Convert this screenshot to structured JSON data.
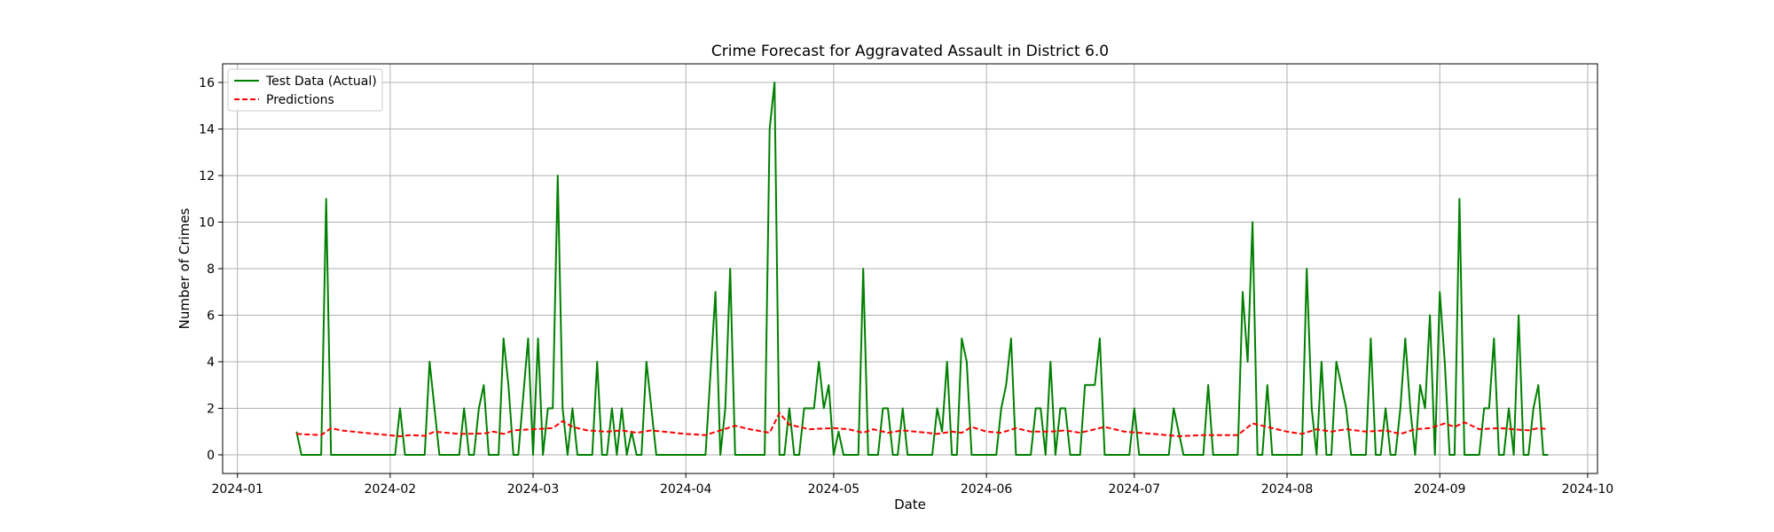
{
  "chart_data": {
    "type": "line",
    "title": "Crime Forecast for Aggravated Assault in District 6.0",
    "xlabel": "Date",
    "ylabel": "Number of Crimes",
    "x_tick_labels": [
      "2024-01",
      "2024-02",
      "2024-03",
      "2024-04",
      "2024-05",
      "2024-06",
      "2024-07",
      "2024-08",
      "2024-09",
      "2024-10"
    ],
    "x_tick_dates": [
      "2024-01-01",
      "2024-02-01",
      "2024-03-01",
      "2024-04-01",
      "2024-05-01",
      "2024-06-01",
      "2024-07-01",
      "2024-08-01",
      "2024-09-01",
      "2024-10-01"
    ],
    "xlim": [
      "2023-12-29",
      "2024-10-03"
    ],
    "ylim": [
      -0.8,
      16.8
    ],
    "y_ticks": [
      0,
      2,
      4,
      6,
      8,
      10,
      12,
      14,
      16
    ],
    "grid": true,
    "legend_position": "top-left",
    "series": [
      {
        "name": "Test Data (Actual)",
        "color": "#008000",
        "style": "solid",
        "points": [
          [
            "2024-01-13",
            1
          ],
          [
            "2024-01-14",
            0
          ],
          [
            "2024-01-18",
            0
          ],
          [
            "2024-01-19",
            11
          ],
          [
            "2024-01-20",
            0
          ],
          [
            "2024-01-25",
            0
          ],
          [
            "2024-02-02",
            0
          ],
          [
            "2024-02-03",
            2
          ],
          [
            "2024-02-04",
            0
          ],
          [
            "2024-02-08",
            0
          ],
          [
            "2024-02-09",
            4
          ],
          [
            "2024-02-11",
            0
          ],
          [
            "2024-02-15",
            0
          ],
          [
            "2024-02-16",
            2
          ],
          [
            "2024-02-17",
            0
          ],
          [
            "2024-02-18",
            0
          ],
          [
            "2024-02-19",
            2
          ],
          [
            "2024-02-20",
            3
          ],
          [
            "2024-02-21",
            0
          ],
          [
            "2024-02-23",
            0
          ],
          [
            "2024-02-24",
            5
          ],
          [
            "2024-02-25",
            3
          ],
          [
            "2024-02-26",
            0
          ],
          [
            "2024-02-27",
            0
          ],
          [
            "2024-02-29",
            5
          ],
          [
            "2024-03-01",
            0
          ],
          [
            "2024-03-02",
            5
          ],
          [
            "2024-03-03",
            0
          ],
          [
            "2024-03-04",
            2
          ],
          [
            "2024-03-05",
            2
          ],
          [
            "2024-03-06",
            12
          ],
          [
            "2024-03-07",
            2
          ],
          [
            "2024-03-08",
            0
          ],
          [
            "2024-03-09",
            2
          ],
          [
            "2024-03-10",
            0
          ],
          [
            "2024-03-13",
            0
          ],
          [
            "2024-03-14",
            4
          ],
          [
            "2024-03-15",
            0
          ],
          [
            "2024-03-16",
            0
          ],
          [
            "2024-03-17",
            2
          ],
          [
            "2024-03-18",
            0
          ],
          [
            "2024-03-19",
            2
          ],
          [
            "2024-03-20",
            0
          ],
          [
            "2024-03-21",
            1
          ],
          [
            "2024-03-22",
            0
          ],
          [
            "2024-03-23",
            0
          ],
          [
            "2024-03-24",
            4
          ],
          [
            "2024-03-26",
            0
          ],
          [
            "2024-04-05",
            0
          ],
          [
            "2024-04-07",
            7
          ],
          [
            "2024-04-08",
            0
          ],
          [
            "2024-04-09",
            2
          ],
          [
            "2024-04-10",
            8
          ],
          [
            "2024-04-11",
            0
          ],
          [
            "2024-04-17",
            0
          ],
          [
            "2024-04-18",
            14
          ],
          [
            "2024-04-19",
            16
          ],
          [
            "2024-04-20",
            0
          ],
          [
            "2024-04-21",
            0
          ],
          [
            "2024-04-22",
            2
          ],
          [
            "2024-04-23",
            0
          ],
          [
            "2024-04-24",
            0
          ],
          [
            "2024-04-25",
            2
          ],
          [
            "2024-04-27",
            2
          ],
          [
            "2024-04-28",
            4
          ],
          [
            "2024-04-29",
            2
          ],
          [
            "2024-04-30",
            3
          ],
          [
            "2024-05-01",
            0
          ],
          [
            "2024-05-02",
            1
          ],
          [
            "2024-05-03",
            0
          ],
          [
            "2024-05-06",
            0
          ],
          [
            "2024-05-07",
            8
          ],
          [
            "2024-05-08",
            0
          ],
          [
            "2024-05-10",
            0
          ],
          [
            "2024-05-11",
            2
          ],
          [
            "2024-05-12",
            2
          ],
          [
            "2024-05-13",
            0
          ],
          [
            "2024-05-14",
            0
          ],
          [
            "2024-05-15",
            2
          ],
          [
            "2024-05-16",
            0
          ],
          [
            "2024-05-21",
            0
          ],
          [
            "2024-05-22",
            2
          ],
          [
            "2024-05-23",
            1
          ],
          [
            "2024-05-24",
            4
          ],
          [
            "2024-05-25",
            0
          ],
          [
            "2024-05-26",
            0
          ],
          [
            "2024-05-27",
            5
          ],
          [
            "2024-05-28",
            4
          ],
          [
            "2024-05-29",
            0
          ],
          [
            "2024-06-03",
            0
          ],
          [
            "2024-06-04",
            2
          ],
          [
            "2024-06-05",
            3
          ],
          [
            "2024-06-06",
            5
          ],
          [
            "2024-06-07",
            0
          ],
          [
            "2024-06-10",
            0
          ],
          [
            "2024-06-11",
            2
          ],
          [
            "2024-06-12",
            2
          ],
          [
            "2024-06-13",
            0
          ],
          [
            "2024-06-14",
            4
          ],
          [
            "2024-06-15",
            0
          ],
          [
            "2024-06-16",
            2
          ],
          [
            "2024-06-17",
            2
          ],
          [
            "2024-06-18",
            0
          ],
          [
            "2024-06-20",
            0
          ],
          [
            "2024-06-21",
            3
          ],
          [
            "2024-06-23",
            3
          ],
          [
            "2024-06-24",
            5
          ],
          [
            "2024-06-25",
            0
          ],
          [
            "2024-06-30",
            0
          ],
          [
            "2024-07-01",
            2
          ],
          [
            "2024-07-02",
            0
          ],
          [
            "2024-07-08",
            0
          ],
          [
            "2024-07-09",
            2
          ],
          [
            "2024-07-11",
            0
          ],
          [
            "2024-07-15",
            0
          ],
          [
            "2024-07-16",
            3
          ],
          [
            "2024-07-17",
            0
          ],
          [
            "2024-07-22",
            0
          ],
          [
            "2024-07-23",
            7
          ],
          [
            "2024-07-24",
            4
          ],
          [
            "2024-07-25",
            10
          ],
          [
            "2024-07-26",
            0
          ],
          [
            "2024-07-27",
            0
          ],
          [
            "2024-07-28",
            3
          ],
          [
            "2024-07-29",
            0
          ],
          [
            "2024-08-04",
            0
          ],
          [
            "2024-08-05",
            8
          ],
          [
            "2024-08-06",
            2
          ],
          [
            "2024-08-07",
            0
          ],
          [
            "2024-08-08",
            4
          ],
          [
            "2024-08-09",
            0
          ],
          [
            "2024-08-10",
            0
          ],
          [
            "2024-08-11",
            4
          ],
          [
            "2024-08-13",
            2
          ],
          [
            "2024-08-14",
            0
          ],
          [
            "2024-08-17",
            0
          ],
          [
            "2024-08-18",
            5
          ],
          [
            "2024-08-19",
            0
          ],
          [
            "2024-08-20",
            0
          ],
          [
            "2024-08-21",
            2
          ],
          [
            "2024-08-22",
            0
          ],
          [
            "2024-08-23",
            0
          ],
          [
            "2024-08-24",
            2
          ],
          [
            "2024-08-25",
            5
          ],
          [
            "2024-08-26",
            2
          ],
          [
            "2024-08-27",
            0
          ],
          [
            "2024-08-28",
            3
          ],
          [
            "2024-08-29",
            2
          ],
          [
            "2024-08-30",
            6
          ],
          [
            "2024-08-31",
            0
          ],
          [
            "2024-09-01",
            7
          ],
          [
            "2024-09-02",
            4
          ],
          [
            "2024-09-03",
            0
          ],
          [
            "2024-09-04",
            0
          ],
          [
            "2024-09-05",
            11
          ],
          [
            "2024-09-06",
            0
          ],
          [
            "2024-09-09",
            0
          ],
          [
            "2024-09-10",
            2
          ],
          [
            "2024-09-11",
            2
          ],
          [
            "2024-09-12",
            5
          ],
          [
            "2024-09-13",
            0
          ],
          [
            "2024-09-14",
            0
          ],
          [
            "2024-09-15",
            2
          ],
          [
            "2024-09-16",
            0
          ],
          [
            "2024-09-17",
            6
          ],
          [
            "2024-09-18",
            0
          ],
          [
            "2024-09-19",
            0
          ],
          [
            "2024-09-20",
            2
          ],
          [
            "2024-09-21",
            3
          ],
          [
            "2024-09-22",
            0
          ],
          [
            "2024-09-23",
            0
          ]
        ]
      },
      {
        "name": "Predictions",
        "color": "#ff0000",
        "style": "dashed",
        "points": [
          [
            "2024-01-13",
            0.9
          ],
          [
            "2024-01-18",
            0.85
          ],
          [
            "2024-01-19",
            1.0
          ],
          [
            "2024-01-20",
            1.15
          ],
          [
            "2024-01-22",
            1.05
          ],
          [
            "2024-01-29",
            0.9
          ],
          [
            "2024-02-03",
            0.8
          ],
          [
            "2024-02-05",
            0.85
          ],
          [
            "2024-02-08",
            0.82
          ],
          [
            "2024-02-10",
            1.0
          ],
          [
            "2024-02-15",
            0.9
          ],
          [
            "2024-02-20",
            0.92
          ],
          [
            "2024-02-22",
            1.0
          ],
          [
            "2024-02-24",
            0.9
          ],
          [
            "2024-02-26",
            1.05
          ],
          [
            "2024-03-01",
            1.1
          ],
          [
            "2024-03-05",
            1.15
          ],
          [
            "2024-03-07",
            1.45
          ],
          [
            "2024-03-09",
            1.2
          ],
          [
            "2024-03-12",
            1.05
          ],
          [
            "2024-03-16",
            1.0
          ],
          [
            "2024-03-19",
            1.05
          ],
          [
            "2024-03-22",
            0.95
          ],
          [
            "2024-03-25",
            1.05
          ],
          [
            "2024-04-01",
            0.9
          ],
          [
            "2024-04-05",
            0.85
          ],
          [
            "2024-04-08",
            1.05
          ],
          [
            "2024-04-11",
            1.25
          ],
          [
            "2024-04-14",
            1.1
          ],
          [
            "2024-04-18",
            0.95
          ],
          [
            "2024-04-20",
            1.8
          ],
          [
            "2024-04-22",
            1.3
          ],
          [
            "2024-04-26",
            1.1
          ],
          [
            "2024-05-01",
            1.15
          ],
          [
            "2024-05-04",
            1.1
          ],
          [
            "2024-05-07",
            0.95
          ],
          [
            "2024-05-09",
            1.1
          ],
          [
            "2024-05-12",
            0.95
          ],
          [
            "2024-05-15",
            1.05
          ],
          [
            "2024-05-20",
            0.95
          ],
          [
            "2024-05-22",
            0.9
          ],
          [
            "2024-05-25",
            1.0
          ],
          [
            "2024-05-27",
            0.95
          ],
          [
            "2024-05-29",
            1.2
          ],
          [
            "2024-06-01",
            1.0
          ],
          [
            "2024-06-04",
            0.95
          ],
          [
            "2024-06-07",
            1.15
          ],
          [
            "2024-06-10",
            1.0
          ],
          [
            "2024-06-14",
            1.0
          ],
          [
            "2024-06-17",
            1.05
          ],
          [
            "2024-06-20",
            0.95
          ],
          [
            "2024-06-25",
            1.2
          ],
          [
            "2024-06-29",
            1.0
          ],
          [
            "2024-07-05",
            0.9
          ],
          [
            "2024-07-10",
            0.8
          ],
          [
            "2024-07-15",
            0.85
          ],
          [
            "2024-07-20",
            0.85
          ],
          [
            "2024-07-22",
            0.85
          ],
          [
            "2024-07-25",
            1.35
          ],
          [
            "2024-07-28",
            1.2
          ],
          [
            "2024-08-01",
            1.0
          ],
          [
            "2024-08-04",
            0.9
          ],
          [
            "2024-08-07",
            1.1
          ],
          [
            "2024-08-10",
            1.0
          ],
          [
            "2024-08-13",
            1.1
          ],
          [
            "2024-08-17",
            1.0
          ],
          [
            "2024-08-21",
            1.05
          ],
          [
            "2024-08-24",
            0.9
          ],
          [
            "2024-08-27",
            1.1
          ],
          [
            "2024-08-30",
            1.15
          ],
          [
            "2024-09-02",
            1.35
          ],
          [
            "2024-09-04",
            1.2
          ],
          [
            "2024-09-06",
            1.4
          ],
          [
            "2024-09-09",
            1.1
          ],
          [
            "2024-09-13",
            1.15
          ],
          [
            "2024-09-16",
            1.1
          ],
          [
            "2024-09-19",
            1.05
          ],
          [
            "2024-09-21",
            1.15
          ],
          [
            "2024-09-23",
            1.1
          ]
        ]
      }
    ]
  }
}
